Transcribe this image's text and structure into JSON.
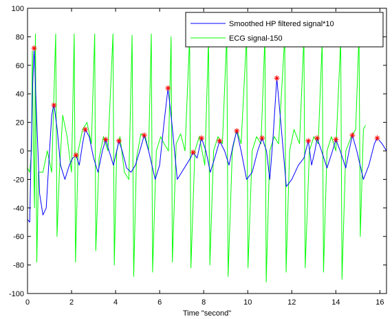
{
  "chart_data": {
    "type": "line",
    "title": "",
    "xlabel": "Time \"second\"",
    "ylabel": "",
    "xlim": [
      0,
      16.3
    ],
    "ylim": [
      -100,
      100
    ],
    "x_ticks": [
      0,
      2,
      4,
      6,
      8,
      10,
      12,
      14,
      16
    ],
    "y_ticks": [
      -100,
      -80,
      -60,
      -40,
      -20,
      0,
      20,
      40,
      60,
      80,
      100
    ],
    "grid": false,
    "legend_position": "top-right",
    "series": [
      {
        "name": "Smoothed HP filtered signal*10",
        "color": "#0000ff",
        "points": [
          [
            0,
            -48
          ],
          [
            0.1,
            -50
          ],
          [
            0.22,
            40
          ],
          [
            0.3,
            72
          ],
          [
            0.42,
            20
          ],
          [
            0.55,
            -30
          ],
          [
            0.7,
            -45
          ],
          [
            0.85,
            -40
          ],
          [
            1.0,
            0
          ],
          [
            1.1,
            25
          ],
          [
            1.2,
            33
          ],
          [
            1.35,
            15
          ],
          [
            1.5,
            -10
          ],
          [
            1.7,
            -20
          ],
          [
            1.9,
            -10
          ],
          [
            2.05,
            -5
          ],
          [
            2.2,
            -3
          ],
          [
            2.35,
            -10
          ],
          [
            2.5,
            5
          ],
          [
            2.62,
            15
          ],
          [
            2.8,
            10
          ],
          [
            3.0,
            -5
          ],
          [
            3.2,
            -15
          ],
          [
            3.4,
            0
          ],
          [
            3.55,
            8
          ],
          [
            3.7,
            0
          ],
          [
            3.9,
            -10
          ],
          [
            4.05,
            0
          ],
          [
            4.15,
            7
          ],
          [
            4.3,
            0
          ],
          [
            4.5,
            -12
          ],
          [
            4.7,
            -15
          ],
          [
            4.9,
            -10
          ],
          [
            5.1,
            0
          ],
          [
            5.3,
            11
          ],
          [
            5.5,
            0
          ],
          [
            5.8,
            -20
          ],
          [
            6.0,
            -10
          ],
          [
            6.2,
            20
          ],
          [
            6.38,
            44
          ],
          [
            6.55,
            20
          ],
          [
            6.8,
            -20
          ],
          [
            7.0,
            -15
          ],
          [
            7.2,
            -10
          ],
          [
            7.4,
            -5
          ],
          [
            7.52,
            -1
          ],
          [
            7.7,
            -5
          ],
          [
            7.9,
            9
          ],
          [
            8.1,
            0
          ],
          [
            8.3,
            -15
          ],
          [
            8.5,
            -5
          ],
          [
            8.72,
            7
          ],
          [
            8.95,
            0
          ],
          [
            9.15,
            -10
          ],
          [
            9.35,
            5
          ],
          [
            9.5,
            14
          ],
          [
            9.7,
            0
          ],
          [
            9.95,
            -20
          ],
          [
            10.2,
            -15
          ],
          [
            10.45,
            0
          ],
          [
            10.65,
            9
          ],
          [
            10.85,
            0
          ],
          [
            11.0,
            -20
          ],
          [
            11.15,
            10
          ],
          [
            11.32,
            51
          ],
          [
            11.5,
            20
          ],
          [
            11.75,
            -25
          ],
          [
            12.0,
            -20
          ],
          [
            12.3,
            -10
          ],
          [
            12.55,
            -5
          ],
          [
            12.75,
            7
          ],
          [
            12.9,
            -10
          ],
          [
            13.05,
            0
          ],
          [
            13.15,
            9
          ],
          [
            13.35,
            0
          ],
          [
            13.6,
            -12
          ],
          [
            13.85,
            0
          ],
          [
            14.0,
            8
          ],
          [
            14.2,
            0
          ],
          [
            14.45,
            -12
          ],
          [
            14.6,
            0
          ],
          [
            14.75,
            11
          ],
          [
            14.95,
            0
          ],
          [
            15.25,
            -20
          ],
          [
            15.5,
            -10
          ],
          [
            15.75,
            5
          ],
          [
            15.88,
            9
          ],
          [
            16.1,
            5
          ],
          [
            16.3,
            0
          ]
        ]
      },
      {
        "name": "ECG signal-150",
        "color": "#00ff00",
        "points": [
          [
            0,
            -12
          ],
          [
            0.1,
            -15
          ],
          [
            0.18,
            0
          ],
          [
            0.22,
            70
          ],
          [
            0.27,
            0
          ],
          [
            0.32,
            -40
          ],
          [
            0.36,
            82
          ],
          [
            0.42,
            -78
          ],
          [
            0.5,
            -15
          ],
          [
            0.7,
            -15
          ],
          [
            0.9,
            0
          ],
          [
            1.1,
            -15
          ],
          [
            1.28,
            82
          ],
          [
            1.34,
            -60
          ],
          [
            1.45,
            -15
          ],
          [
            1.6,
            25
          ],
          [
            1.8,
            10
          ],
          [
            2.0,
            -15
          ],
          [
            2.12,
            82
          ],
          [
            2.18,
            -78
          ],
          [
            2.3,
            0
          ],
          [
            2.5,
            15
          ],
          [
            2.7,
            20
          ],
          [
            2.9,
            5
          ],
          [
            3.05,
            82
          ],
          [
            3.1,
            -70
          ],
          [
            3.25,
            -5
          ],
          [
            3.45,
            10
          ],
          [
            3.65,
            0
          ],
          [
            3.88,
            82
          ],
          [
            3.94,
            -80
          ],
          [
            4.05,
            0
          ],
          [
            4.2,
            10
          ],
          [
            4.4,
            -15
          ],
          [
            4.6,
            -20
          ],
          [
            4.75,
            81
          ],
          [
            4.82,
            -88
          ],
          [
            4.95,
            -5
          ],
          [
            5.15,
            12
          ],
          [
            5.35,
            10
          ],
          [
            5.5,
            0
          ],
          [
            5.62,
            82
          ],
          [
            5.68,
            -85
          ],
          [
            5.85,
            0
          ],
          [
            6.05,
            10
          ],
          [
            6.2,
            5
          ],
          [
            6.4,
            0
          ],
          [
            6.52,
            80
          ],
          [
            6.58,
            -78
          ],
          [
            6.75,
            5
          ],
          [
            6.95,
            12
          ],
          [
            7.15,
            0
          ],
          [
            7.36,
            80
          ],
          [
            7.42,
            -82
          ],
          [
            7.6,
            0
          ],
          [
            7.8,
            10
          ],
          [
            8.05,
            -10
          ],
          [
            8.22,
            79
          ],
          [
            8.28,
            -80
          ],
          [
            8.45,
            0
          ],
          [
            8.65,
            10
          ],
          [
            8.85,
            5
          ],
          [
            9.05,
            82
          ],
          [
            9.11,
            -88
          ],
          [
            9.3,
            0
          ],
          [
            9.5,
            15
          ],
          [
            9.7,
            5
          ],
          [
            9.95,
            81
          ],
          [
            10.01,
            -82
          ],
          [
            10.2,
            0
          ],
          [
            10.4,
            10
          ],
          [
            10.6,
            5
          ],
          [
            10.78,
            80
          ],
          [
            10.84,
            -92
          ],
          [
            11.0,
            0
          ],
          [
            11.2,
            10
          ],
          [
            11.4,
            5
          ],
          [
            11.68,
            80
          ],
          [
            11.74,
            -85
          ],
          [
            11.9,
            0
          ],
          [
            12.1,
            15
          ],
          [
            12.35,
            5
          ],
          [
            12.55,
            80
          ],
          [
            12.61,
            -82
          ],
          [
            12.8,
            0
          ],
          [
            13.0,
            10
          ],
          [
            13.2,
            5
          ],
          [
            13.38,
            77
          ],
          [
            13.44,
            -85
          ],
          [
            13.6,
            0
          ],
          [
            13.8,
            10
          ],
          [
            14.0,
            0
          ],
          [
            14.22,
            78
          ],
          [
            14.28,
            -90
          ],
          [
            14.45,
            0
          ],
          [
            14.7,
            10
          ],
          [
            14.9,
            15
          ],
          [
            15.05,
            82
          ],
          [
            15.11,
            -60
          ],
          [
            15.25,
            15
          ],
          [
            15.35,
            18
          ]
        ]
      }
    ],
    "peak_markers": {
      "color": "#ff0000",
      "points": [
        [
          0.3,
          72
        ],
        [
          1.2,
          32
        ],
        [
          2.2,
          -3
        ],
        [
          2.62,
          15
        ],
        [
          3.55,
          8
        ],
        [
          4.15,
          7
        ],
        [
          5.3,
          11
        ],
        [
          6.38,
          44
        ],
        [
          7.52,
          -1
        ],
        [
          7.9,
          9
        ],
        [
          8.72,
          7
        ],
        [
          9.5,
          14
        ],
        [
          10.65,
          9
        ],
        [
          11.32,
          51
        ],
        [
          12.75,
          7
        ],
        [
          13.15,
          9
        ],
        [
          14.0,
          8
        ],
        [
          14.75,
          11
        ],
        [
          15.88,
          9
        ]
      ]
    }
  }
}
